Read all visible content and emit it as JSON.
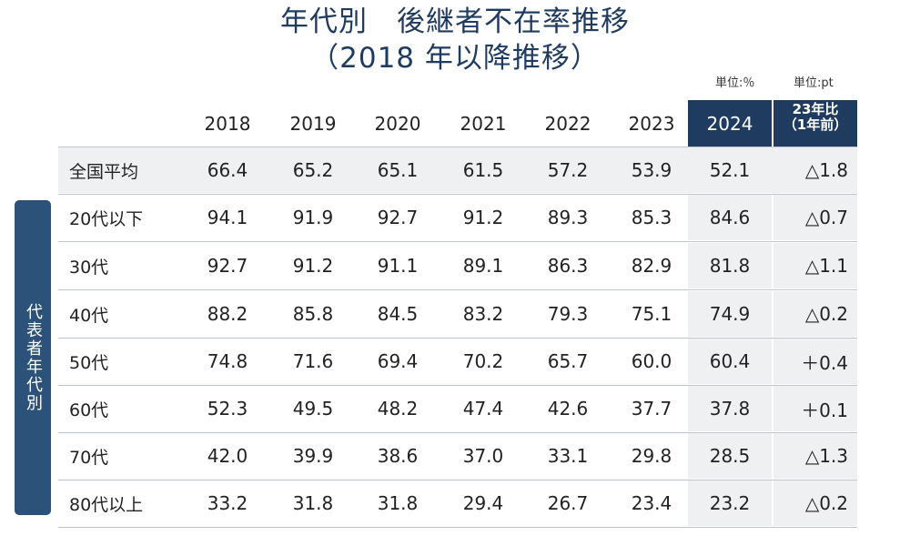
{
  "title_line1": "年代別　後継者不在率推移",
  "title_line2": "（2018 年以降推移）",
  "unit_percent": "単位:％",
  "unit_pt": "単位:pt",
  "side_label": "代表者年代別",
  "chart_data": {
    "type": "table",
    "columns": [
      "2018",
      "2019",
      "2020",
      "2021",
      "2022",
      "2023",
      "2024"
    ],
    "comparison_header": "23年比\n（1年前）",
    "rows": [
      {
        "label": "全国平均",
        "values": [
          "66.4",
          "65.2",
          "65.1",
          "61.5",
          "57.2",
          "53.9",
          "52.1"
        ],
        "change": "△1.8"
      },
      {
        "label": "20代以下",
        "values": [
          "94.1",
          "91.9",
          "92.7",
          "91.2",
          "89.3",
          "85.3",
          "84.6"
        ],
        "change": "△0.7"
      },
      {
        "label": "30代",
        "values": [
          "92.7",
          "91.2",
          "91.1",
          "89.1",
          "86.3",
          "82.9",
          "81.8"
        ],
        "change": "△1.1"
      },
      {
        "label": "40代",
        "values": [
          "88.2",
          "85.8",
          "84.5",
          "83.2",
          "79.3",
          "75.1",
          "74.9"
        ],
        "change": "△0.2"
      },
      {
        "label": "50代",
        "values": [
          "74.8",
          "71.6",
          "69.4",
          "70.2",
          "65.7",
          "60.0",
          "60.4"
        ],
        "change": "＋0.4"
      },
      {
        "label": "60代",
        "values": [
          "52.3",
          "49.5",
          "48.2",
          "47.4",
          "42.6",
          "37.7",
          "37.8"
        ],
        "change": "＋0.1"
      },
      {
        "label": "70代",
        "values": [
          "42.0",
          "39.9",
          "38.6",
          "37.0",
          "33.1",
          "29.8",
          "28.5"
        ],
        "change": "△1.3"
      },
      {
        "label": "80代以上",
        "values": [
          "33.2",
          "31.8",
          "31.8",
          "29.4",
          "26.7",
          "23.4",
          "23.2"
        ],
        "change": "△0.2"
      }
    ]
  }
}
